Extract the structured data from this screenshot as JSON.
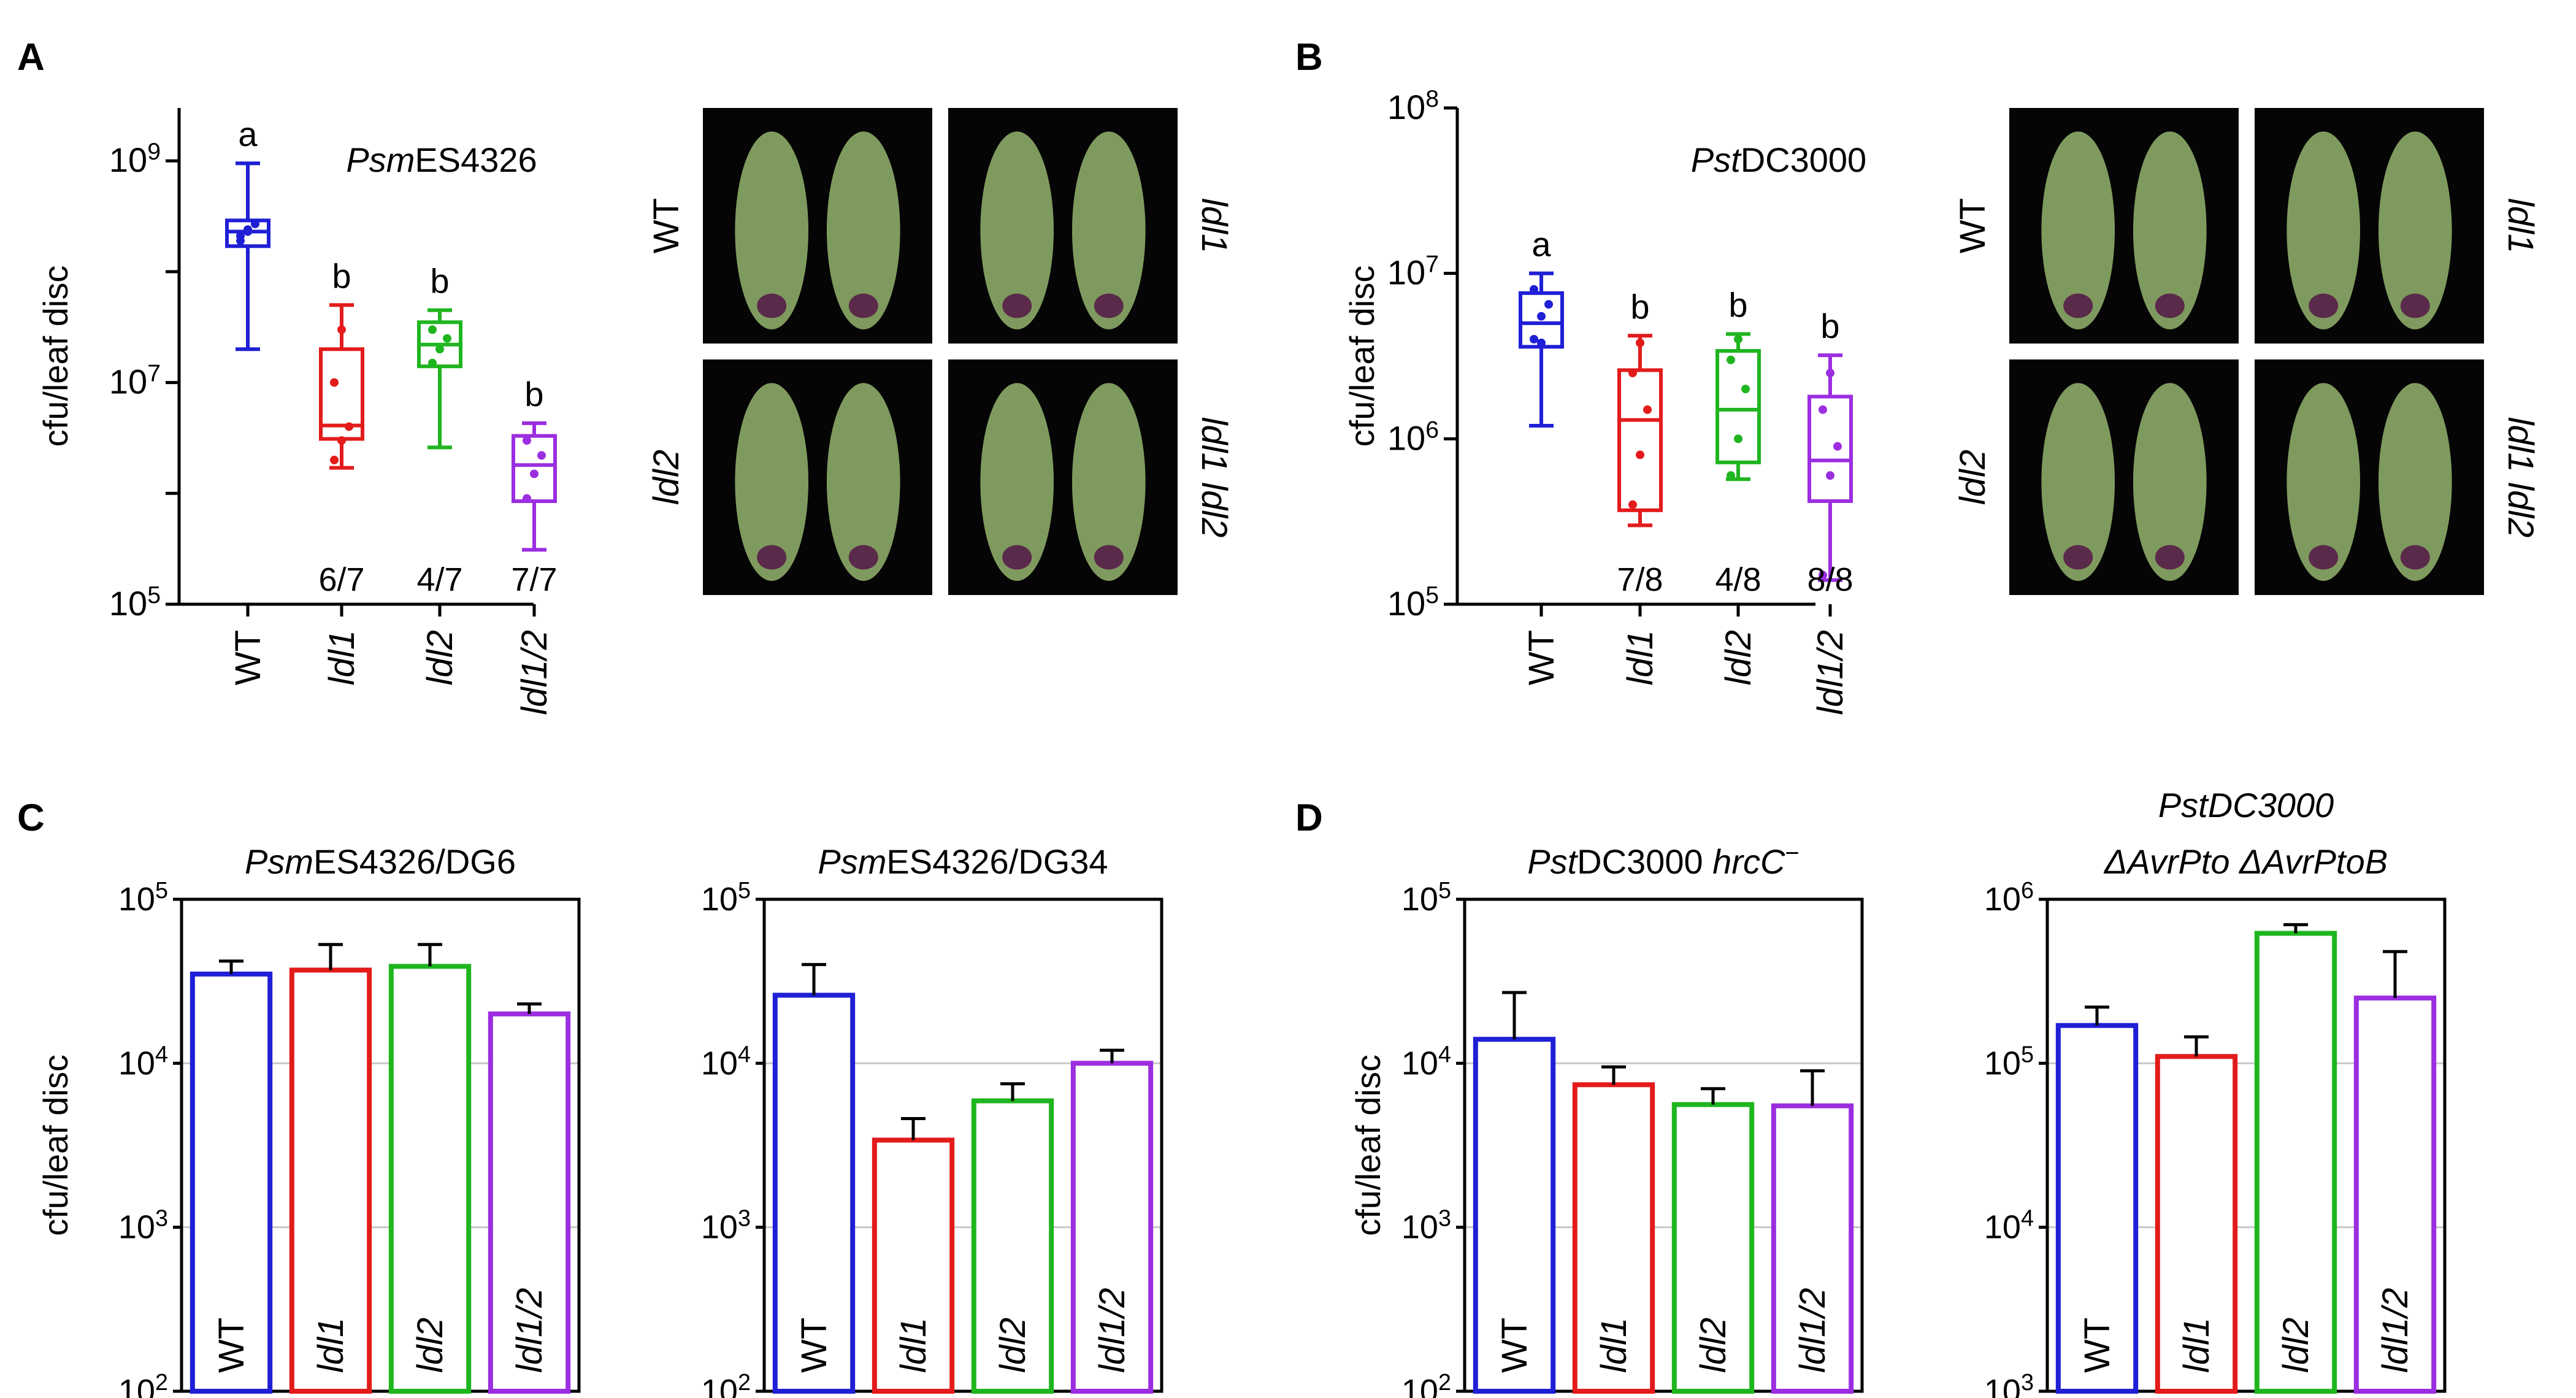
{
  "panels": {
    "A": {
      "letter": "A",
      "strain": "PsmES4326",
      "strain_italic": "Psm",
      "strain_rest": "ES4326",
      "ylabel": "cfu/leaf disc",
      "photo_labels": [
        "WT",
        "ldl1",
        "ldl2",
        "ldl1 ldl2"
      ]
    },
    "B": {
      "letter": "B",
      "strain": "PstDC3000",
      "strain_italic": "Pst",
      "strain_rest": "DC3000",
      "ylabel": "cfu/leaf disc",
      "photo_labels": [
        "WT",
        "ldl1",
        "ldl2",
        "ldl1 ldl2"
      ]
    },
    "C": {
      "letter": "C",
      "ylabel": "cfu/leaf disc"
    },
    "D": {
      "letter": "D",
      "ylabel": "cfu/leaf disc"
    }
  },
  "colors": {
    "WT": "#1f1fd6",
    "ldl1": "#e31b1b",
    "ldl2": "#1fb51f",
    "ldl1/2": "#9b2ee0",
    "leaf_bg": "#050505",
    "leaf": "#7f9a5e",
    "lesion": "#5a2a4a"
  },
  "chart_data": [
    {
      "panel": "A",
      "type": "box",
      "title": "PsmES4326",
      "ylabel": "cfu/leaf disc",
      "yscale": "log",
      "ylim": [
        100000,
        3000000000
      ],
      "yticks": [
        "10^5",
        "10^7",
        "10^9"
      ],
      "categories": [
        "WT",
        "ldl1",
        "ldl2",
        "ldl1/2"
      ],
      "boxes": [
        {
          "min": 20000000,
          "q1": 170000000,
          "median": 230000000,
          "q3": 290000000,
          "max": 950000000,
          "points": [
            210000000,
            240000000,
            270000000,
            190000000,
            230000000
          ]
        },
        {
          "min": 1700000,
          "q1": 3100000,
          "median": 4100000,
          "q3": 20000000,
          "max": 50000000,
          "points": [
            2000000,
            3000000,
            4000000,
            10000000,
            30000000
          ]
        },
        {
          "min": 2600000,
          "q1": 14000000,
          "median": 22000000,
          "q3": 35000000,
          "max": 45000000,
          "points": [
            15000000,
            20000000,
            25000000,
            30000000
          ]
        },
        {
          "min": 310000,
          "q1": 850000,
          "median": 1800000,
          "q3": 3300000,
          "max": 4300000,
          "points": [
            900000,
            1500000,
            2200000,
            3000000
          ]
        }
      ],
      "letters": [
        "a",
        "b",
        "b",
        "b"
      ],
      "ratios": [
        "",
        "6/7",
        "4/7",
        "7/7"
      ]
    },
    {
      "panel": "B",
      "type": "box",
      "title": "PstDC3000",
      "ylabel": "cfu/leaf disc",
      "yscale": "log",
      "ylim": [
        100000,
        100000000
      ],
      "yticks": [
        "10^5",
        "10^6",
        "10^7",
        "10^8"
      ],
      "categories": [
        "WT",
        "ldl1",
        "ldl2",
        "ldl1/2"
      ],
      "boxes": [
        {
          "min": 1200000,
          "q1": 3600000,
          "median": 5000000,
          "q3": 7600000,
          "max": 10000000,
          "points": [
            4000000,
            5500000,
            6500000,
            8000000,
            3800000
          ]
        },
        {
          "min": 300000,
          "q1": 370000,
          "median": 1300000,
          "q3": 2600000,
          "max": 4200000,
          "points": [
            400000,
            800000,
            1500000,
            2500000,
            3800000
          ]
        },
        {
          "min": 570000,
          "q1": 720000,
          "median": 1500000,
          "q3": 3400000,
          "max": 4300000,
          "points": [
            600000,
            1000000,
            2000000,
            3000000,
            4000000
          ]
        },
        {
          "min": 140000,
          "q1": 420000,
          "median": 740000,
          "q3": 1800000,
          "max": 3200000,
          "points": [
            150000,
            600000,
            900000,
            1500000,
            2500000
          ]
        }
      ],
      "letters": [
        "a",
        "b",
        "b",
        "b"
      ],
      "ratios": [
        "",
        "7/8",
        "4/8",
        "8/8"
      ]
    },
    {
      "panel": "C1",
      "type": "bar",
      "title": "PsmES4326/DG6",
      "ylabel": "cfu/leaf disc",
      "yscale": "log",
      "ylim": [
        100,
        100000
      ],
      "yticks": [
        "10^2",
        "10^3",
        "10^4",
        "10^5"
      ],
      "categories": [
        "WT",
        "ldl1",
        "ldl2",
        "ldl1/2"
      ],
      "values": [
        35000,
        37000,
        39000,
        20000
      ],
      "errors": [
        42000,
        53000,
        53000,
        23000
      ]
    },
    {
      "panel": "C2",
      "type": "bar",
      "title": "PsmES4326/DG34",
      "ylabel": "",
      "yscale": "log",
      "ylim": [
        100,
        100000
      ],
      "yticks": [
        "10^2",
        "10^3",
        "10^4",
        "10^5"
      ],
      "categories": [
        "WT",
        "ldl1",
        "ldl2",
        "ldl1/2"
      ],
      "values": [
        26000,
        3400,
        5900,
        10000
      ],
      "errors": [
        40000,
        4600,
        7500,
        12000
      ]
    },
    {
      "panel": "D1",
      "type": "bar",
      "title": "PstDC3000 hrcC−",
      "ylabel": "cfu/leaf disc",
      "yscale": "log",
      "ylim": [
        100,
        100000
      ],
      "yticks": [
        "10^2",
        "10^3",
        "10^4",
        "10^5"
      ],
      "categories": [
        "WT",
        "ldl1",
        "ldl2",
        "ldl1/2"
      ],
      "values": [
        14000,
        7400,
        5600,
        5500
      ],
      "errors": [
        27000,
        9500,
        7000,
        9000
      ]
    },
    {
      "panel": "D2",
      "type": "bar",
      "title": "PstDC3000 ΔAvrPto ΔAvrPtoB",
      "ylabel": "",
      "yscale": "log",
      "ylim": [
        1000,
        1000000
      ],
      "yticks": [
        "10^3",
        "10^4",
        "10^5",
        "10^6"
      ],
      "categories": [
        "WT",
        "ldl1",
        "ldl2",
        "ldl1/2"
      ],
      "values": [
        170000,
        110000,
        620000,
        250000
      ],
      "errors": [
        220000,
        145000,
        700000,
        480000
      ]
    }
  ]
}
